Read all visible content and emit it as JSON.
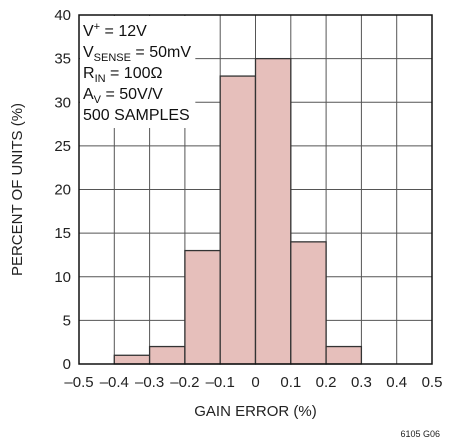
{
  "chart_data": {
    "type": "bar",
    "xlabel": "GAIN ERROR (%)",
    "ylabel": "PERCENT OF UNITS (%)",
    "xlim": [
      -0.5,
      0.5
    ],
    "ylim": [
      0,
      40
    ],
    "x_ticks": [
      -0.5,
      -0.4,
      -0.3,
      -0.2,
      -0.1,
      0,
      0.1,
      0.2,
      0.3,
      0.4,
      0.5
    ],
    "x_tick_labels": [
      "–0.5",
      "–0.4",
      "–0.3",
      "–0.2",
      "–0.1",
      "0",
      "0.1",
      "0.2",
      "0.3",
      "0.4",
      "0.5"
    ],
    "y_ticks": [
      0,
      5,
      10,
      15,
      20,
      25,
      30,
      35,
      40
    ],
    "y_tick_labels": [
      "0",
      "5",
      "10",
      "15",
      "20",
      "25",
      "30",
      "35",
      "40"
    ],
    "grid": true,
    "bin_width": 0.1,
    "bins": [
      {
        "x0": -0.4,
        "x1": -0.3,
        "value": 1
      },
      {
        "x0": -0.3,
        "x1": -0.2,
        "value": 2
      },
      {
        "x0": -0.2,
        "x1": -0.1,
        "value": 13
      },
      {
        "x0": -0.1,
        "x1": 0.0,
        "value": 33
      },
      {
        "x0": 0.0,
        "x1": 0.1,
        "value": 35
      },
      {
        "x0": 0.1,
        "x1": 0.2,
        "value": 14
      },
      {
        "x0": 0.2,
        "x1": 0.3,
        "value": 2
      }
    ],
    "bar_color": "#e6bfbb",
    "bar_edge_color": "#333333",
    "annotation_lines": [
      {
        "parts": [
          {
            "text": "V"
          },
          {
            "text": "+",
            "style": "sup"
          },
          {
            "text": " = 12V"
          }
        ]
      },
      {
        "parts": [
          {
            "text": "V"
          },
          {
            "text": "SENSE",
            "style": "sub"
          },
          {
            "text": " = 50mV"
          }
        ]
      },
      {
        "parts": [
          {
            "text": "R"
          },
          {
            "text": "IN",
            "style": "sub"
          },
          {
            "text": " = 100Ω"
          }
        ]
      },
      {
        "parts": [
          {
            "text": "A"
          },
          {
            "text": "V",
            "style": "sub"
          },
          {
            "text": " = 50V/V"
          }
        ]
      },
      {
        "parts": [
          {
            "text": "500 SAMPLES"
          }
        ]
      }
    ],
    "figure_id": "6105 G06"
  }
}
